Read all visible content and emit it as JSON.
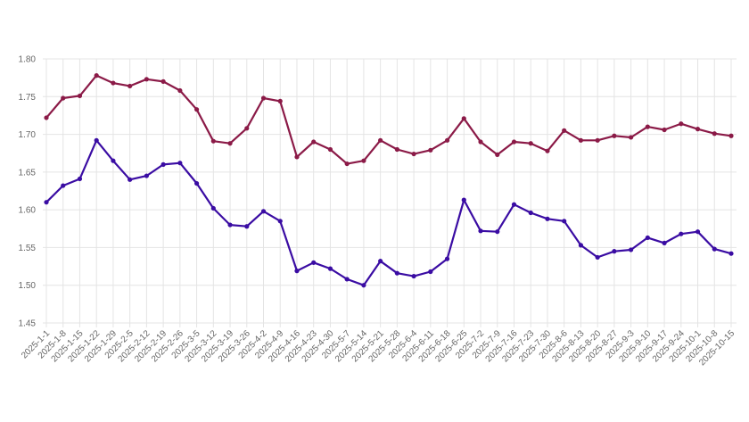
{
  "chart_data": {
    "type": "line",
    "title": "",
    "xlabel": "",
    "ylabel": "",
    "ylim": [
      1.45,
      1.8
    ],
    "y_ticks": [
      "1.45",
      "1.50",
      "1.55",
      "1.60",
      "1.65",
      "1.70",
      "1.75",
      "1.80"
    ],
    "y_tick_values": [
      1.45,
      1.5,
      1.55,
      1.6,
      1.65,
      1.7,
      1.75,
      1.8
    ],
    "grid": true,
    "x_tick_labels": [
      "2025-1-1",
      "2025-1-8",
      "2025-1-15",
      "2025-1-22",
      "2025-1-29",
      "2025-2-5",
      "2025-2-12",
      "2025-2-19",
      "2025-2-26",
      "2025-3-5",
      "2025-3-12",
      "2025-3-19",
      "2025-3-26",
      "2025-4-2",
      "2025-4-9",
      "2025-4-16",
      "2025-4-23",
      "2025-4-30",
      "2025-5-7",
      "2025-5-14",
      "2025-5-21",
      "2025-5-28",
      "2025-6-4",
      "2025-6-11",
      "2025-6-18",
      "2025-6-25",
      "2025-7-2",
      "2025-7-9",
      "2025-7-16",
      "2025-7-23",
      "2025-7-30",
      "2025-8-6",
      "2025-8-13",
      "2025-8-20",
      "2025-8-27",
      "2025-9-3",
      "2025-9-10",
      "2025-9-17",
      "2025-9-24",
      "2025-10-1",
      "2025-10-8",
      "2025-10-15"
    ],
    "series": [
      {
        "color": "#8b1a47",
        "x": [
          "2025-1-1",
          "2025-1-8",
          "2025-1-15",
          "2025-1-22",
          "2025-1-29",
          "2025-2-5",
          "2025-2-12",
          "2025-2-19",
          "2025-2-26",
          "2025-3-5",
          "2025-3-12",
          "2025-3-19",
          "2025-3-26",
          "2025-4-2",
          "2025-4-9",
          "2025-4-16",
          "2025-4-23",
          "2025-4-30",
          "2025-5-7",
          "2025-5-14",
          "2025-5-21",
          "2025-5-28",
          "2025-6-4",
          "2025-6-11",
          "2025-6-18",
          "2025-6-25",
          "2025-7-2",
          "2025-7-9",
          "2025-7-16",
          "2025-7-23",
          "2025-7-30",
          "2025-8-6",
          "2025-8-13",
          "2025-8-20",
          "2025-8-27",
          "2025-9-3",
          "2025-9-10",
          "2025-9-17",
          "2025-9-24",
          "2025-10-1",
          "2025-10-8",
          "2025-10-15"
        ],
        "values": [
          1.722,
          1.748,
          1.751,
          1.778,
          1.768,
          1.764,
          1.773,
          1.77,
          1.758,
          1.733,
          1.691,
          1.688,
          1.708,
          1.748,
          1.744,
          1.67,
          1.69,
          1.68,
          1.661,
          1.665,
          1.692,
          1.68,
          1.674,
          1.679,
          1.692,
          1.721,
          1.69,
          1.673,
          1.69,
          1.688,
          1.678,
          1.705,
          1.692,
          1.692,
          1.698,
          1.696,
          1.71,
          1.706,
          1.714,
          1.707,
          1.701,
          1.698
        ]
      },
      {
        "color": "#3a0ca3",
        "x": [
          "2025-1-1",
          "2025-1-8",
          "2025-1-15",
          "2025-1-22",
          "2025-1-29",
          "2025-2-5",
          "2025-2-12",
          "2025-2-19",
          "2025-2-26",
          "2025-3-5",
          "2025-3-12",
          "2025-3-19",
          "2025-3-26",
          "2025-4-2",
          "2025-4-9",
          "2025-4-16",
          "2025-4-23",
          "2025-4-30",
          "2025-5-7",
          "2025-5-14",
          "2025-5-21",
          "2025-5-28",
          "2025-6-4",
          "2025-6-11",
          "2025-6-18",
          "2025-6-25",
          "2025-7-2",
          "2025-7-9",
          "2025-7-16",
          "2025-7-23",
          "2025-7-30",
          "2025-8-6",
          "2025-8-13",
          "2025-8-20",
          "2025-8-27",
          "2025-9-3",
          "2025-9-10",
          "2025-9-17",
          "2025-9-24",
          "2025-10-1",
          "2025-10-8",
          "2025-10-15"
        ],
        "values": [
          1.61,
          1.632,
          1.641,
          1.692,
          1.665,
          1.64,
          1.645,
          1.66,
          1.662,
          1.635,
          1.602,
          1.58,
          1.578,
          1.598,
          1.585,
          1.519,
          1.53,
          1.522,
          1.508,
          1.5,
          1.532,
          1.516,
          1.512,
          1.518,
          1.535,
          1.613,
          1.572,
          1.571,
          1.607,
          1.596,
          1.588,
          1.585,
          1.553,
          1.537,
          1.545,
          1.547,
          1.563,
          1.556,
          1.568,
          1.571,
          1.548,
          1.542
        ]
      }
    ]
  }
}
